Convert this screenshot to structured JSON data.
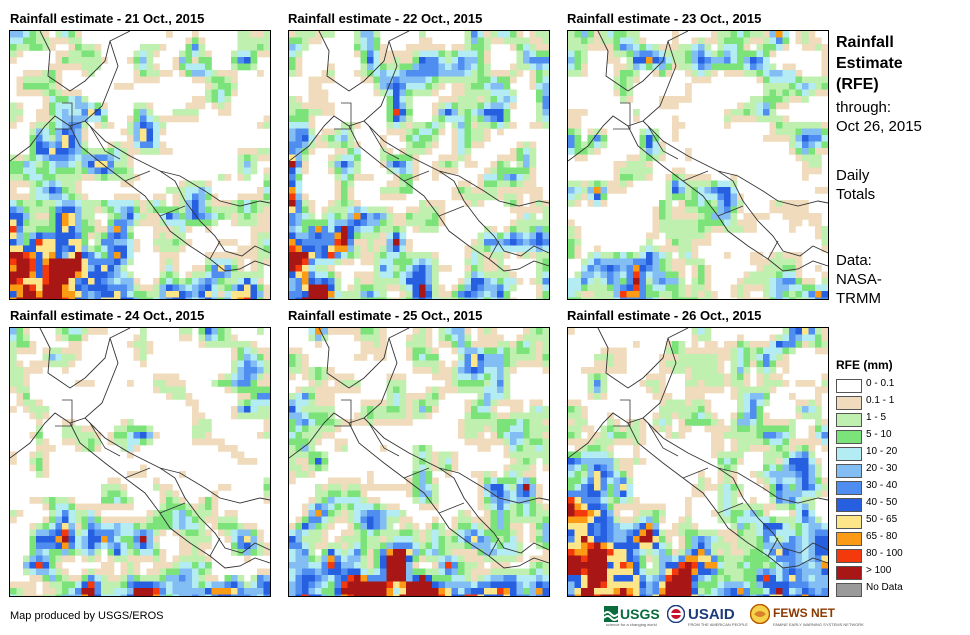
{
  "panels": [
    {
      "title": "Rainfall estimate - 21 Oct., 2015",
      "pattern": "heavy_west"
    },
    {
      "title": "Rainfall estimate - 22 Oct., 2015",
      "pattern": "moderate"
    },
    {
      "title": "Rainfall estimate - 23 Oct., 2015",
      "pattern": "light"
    },
    {
      "title": "Rainfall estimate - 24 Oct., 2015",
      "pattern": "light_south"
    },
    {
      "title": "Rainfall estimate - 25 Oct., 2015",
      "pattern": "moderate_south"
    },
    {
      "title": "Rainfall estimate - 26 Oct., 2015",
      "pattern": "heavy_south"
    }
  ],
  "side": {
    "title_line1": "Rainfall",
    "title_line2": "Estimate",
    "title_line3": "(RFE)",
    "through_label": "through:",
    "through_date": "Oct 26, 2015",
    "daily_line1": "Daily",
    "daily_line2": "Totals",
    "data_line1": "Data:",
    "data_line2": "NASA-",
    "data_line3": "TRMM"
  },
  "legend": {
    "title": "RFE (mm)",
    "items": [
      {
        "label": "0 - 0.1",
        "color": "#ffffff"
      },
      {
        "label": "0.1 - 1",
        "color": "#f0dcbd"
      },
      {
        "label": "1 - 5",
        "color": "#bff0b0"
      },
      {
        "label": "5 - 10",
        "color": "#7ce27a"
      },
      {
        "label": "10 - 20",
        "color": "#b4ecf4"
      },
      {
        "label": "20 - 30",
        "color": "#82bdf3"
      },
      {
        "label": "30 - 40",
        "color": "#4f8ef0"
      },
      {
        "label": "40 - 50",
        "color": "#2660e0"
      },
      {
        "label": "50 - 65",
        "color": "#fde68a"
      },
      {
        "label": "65 - 80",
        "color": "#fb9a14"
      },
      {
        "label": "80 - 100",
        "color": "#f43a0c"
      },
      {
        "label": "> 100",
        "color": "#a81616"
      },
      {
        "label": "No Data",
        "color": "#9a9a9a"
      }
    ]
  },
  "credit": "Map produced by USGS/EROS",
  "logos": {
    "usgs": "USGS",
    "usgs_tagline": "science for a changing world",
    "usaid": "USAID",
    "usaid_tagline": "FROM THE AMERICAN PEOPLE",
    "fewsnet": "FEWS NET",
    "fewsnet_tagline": "FAMINE EARLY WARNING SYSTEMS NETWORK"
  }
}
